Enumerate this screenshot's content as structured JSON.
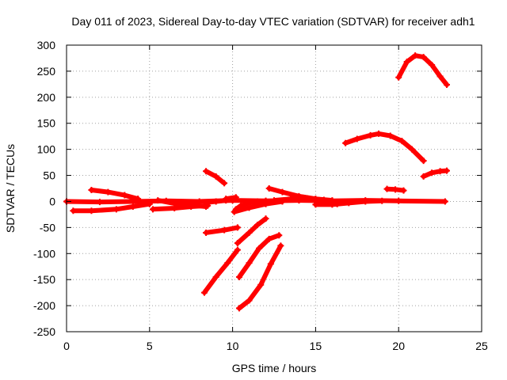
{
  "chart_data": {
    "type": "scatter",
    "title": "Day 011 of 2023, Sidereal Day-to-day VTEC variation (SDTVAR) for receiver adh1",
    "xlabel": "GPS time / hours",
    "ylabel": "SDTVAR / TECUs",
    "xlim": [
      0,
      25
    ],
    "ylim": [
      -250,
      300
    ],
    "xticks": [
      "0",
      "5",
      "10",
      "15",
      "20",
      "25"
    ],
    "yticks": [
      "-250",
      "-200",
      "-150",
      "-100",
      "-50",
      "0",
      "50",
      "100",
      "150",
      "200",
      "250",
      "300"
    ],
    "xtick_values": [
      0,
      5,
      10,
      15,
      20,
      25
    ],
    "ytick_values": [
      -250,
      -200,
      -150,
      -100,
      -50,
      0,
      50,
      100,
      150,
      200,
      250,
      300
    ],
    "grid": true,
    "legend": "none",
    "marker": "plus",
    "color": "#ff0000",
    "series": [
      {
        "x": [
          0,
          2,
          4,
          6,
          8,
          10,
          12,
          14,
          16,
          18,
          20,
          22.8
        ],
        "y": [
          0,
          -1,
          0,
          1,
          0,
          2,
          1,
          2,
          1,
          2,
          1,
          0
        ]
      },
      {
        "x": [
          0.4,
          1.5,
          3,
          4,
          5
        ],
        "y": [
          -18,
          -18,
          -15,
          -10,
          -5
        ]
      },
      {
        "x": [
          1.5,
          2.5,
          3.5,
          4.3
        ],
        "y": [
          22,
          18,
          12,
          5
        ]
      },
      {
        "x": [
          5.2,
          6.5,
          7.5,
          8.5
        ],
        "y": [
          -15,
          -13,
          -10,
          -8
        ]
      },
      {
        "x": [
          5.5,
          6.5,
          7.5,
          8.4
        ],
        "y": [
          2,
          -4,
          -7,
          -10
        ]
      },
      {
        "x": [
          8.4,
          9.0,
          9.6
        ],
        "y": [
          -2,
          0,
          2
        ]
      },
      {
        "x": [
          8.4,
          9.5,
          10.3
        ],
        "y": [
          -60,
          -55,
          -50
        ]
      },
      {
        "x": [
          9.6,
          10.2
        ],
        "y": [
          5,
          8
        ]
      },
      {
        "x": [
          8.4,
          9.0,
          9.5
        ],
        "y": [
          58,
          48,
          35
        ]
      },
      {
        "x": [
          8.3,
          9.0,
          9.7,
          10.3
        ],
        "y": [
          -175,
          -145,
          -118,
          -93
        ]
      },
      {
        "x": [
          10.3,
          11.0,
          11.5,
          12.0
        ],
        "y": [
          -80,
          -60,
          -45,
          -33
        ]
      },
      {
        "x": [
          10.2,
          10.5,
          11.0,
          11.5,
          12.0
        ],
        "y": [
          -15,
          -8,
          -3,
          0,
          1
        ]
      },
      {
        "x": [
          10.1,
          11.0,
          12.0,
          13.0
        ],
        "y": [
          -20,
          -12,
          -5,
          0
        ]
      },
      {
        "x": [
          10.4,
          11.0,
          11.6,
          12.2,
          12.8
        ],
        "y": [
          -145,
          -118,
          -90,
          -72,
          -65
        ]
      },
      {
        "x": [
          10.4,
          11.0,
          11.7,
          12.3,
          12.9
        ],
        "y": [
          -205,
          -190,
          -160,
          -120,
          -85
        ]
      },
      {
        "x": [
          12.2,
          13.0,
          14.0,
          15.0,
          16.0
        ],
        "y": [
          25,
          18,
          10,
          5,
          2
        ]
      },
      {
        "x": [
          12.5,
          13.5,
          14.5,
          15.5,
          16.3
        ],
        "y": [
          2,
          5,
          6,
          3,
          -5
        ]
      },
      {
        "x": [
          15.0,
          16.0,
          17.0,
          18.0,
          19.0
        ],
        "y": [
          -6,
          -6,
          -3,
          0,
          1
        ]
      },
      {
        "x": [
          16.8,
          17.5,
          18.3,
          18.8,
          19.5,
          20.2,
          20.8,
          21.5
        ],
        "y": [
          112,
          120,
          127,
          130,
          126,
          116,
          100,
          78
        ]
      },
      {
        "x": [
          19.3,
          19.8,
          20.3
        ],
        "y": [
          24,
          23,
          21
        ]
      },
      {
        "x": [
          21.5,
          22.0,
          22.5,
          22.9
        ],
        "y": [
          48,
          55,
          58,
          59
        ]
      },
      {
        "x": [
          20.0,
          20.5,
          21.0,
          21.5,
          22.0,
          22.5,
          22.9
        ],
        "y": [
          238,
          268,
          280,
          277,
          262,
          240,
          224
        ]
      }
    ]
  }
}
